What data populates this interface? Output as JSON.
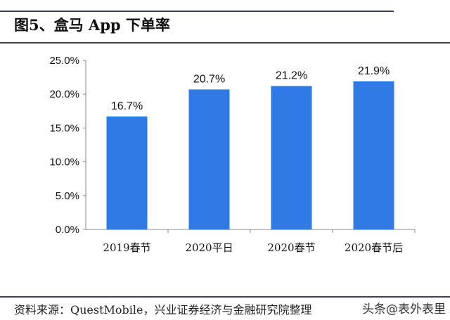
{
  "title": "图5、盒马 App 下单率",
  "source": "资料来源：QuestMobile，兴业证券经济与金融研究院整理",
  "watermark": "头条@表外表里",
  "chart_data": {
    "type": "bar",
    "title": "图5、盒马 App 下单率",
    "categories": [
      "2019春节",
      "2020平日",
      "2020春节",
      "2020春节后"
    ],
    "values": [
      16.7,
      20.7,
      21.2,
      21.9
    ],
    "data_labels": [
      "16.7%",
      "20.7%",
      "21.2%",
      "21.9%"
    ],
    "ylim": [
      0,
      25
    ],
    "yticks": [
      "0.0%",
      "5.0%",
      "10.0%",
      "15.0%",
      "20.0%",
      "25.0%"
    ],
    "bar_color": "#2f7ae5",
    "grid": false,
    "legend": "none"
  }
}
